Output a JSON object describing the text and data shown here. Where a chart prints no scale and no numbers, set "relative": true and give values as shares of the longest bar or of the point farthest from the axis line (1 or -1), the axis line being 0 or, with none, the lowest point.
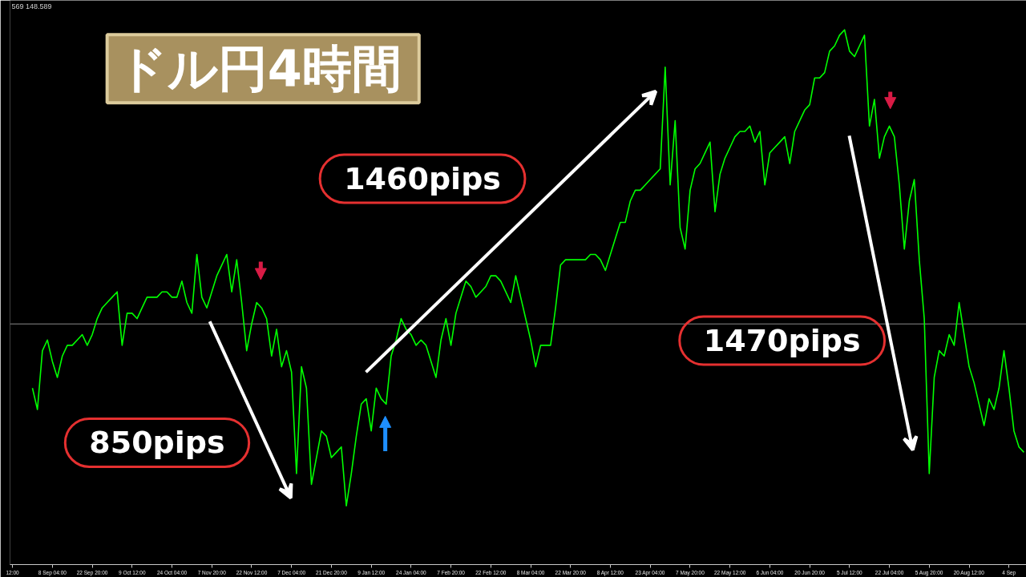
{
  "chart_data": {
    "type": "line",
    "title": "ドル円4時間",
    "relative": true,
    "color": "#00ff00",
    "tick_labels": "x",
    "annotations": [
      "569 148.589",
      "1460pips",
      "1470pips",
      "850pips"
    ],
    "ref_lines": [
      {
        "axis": "y",
        "value": 0.45,
        "color": "#8c8c8c"
      }
    ],
    "categories": [
      "12:00",
      null,
      null,
      null,
      null,
      null,
      null,
      null,
      "8 Sep 04:00",
      null,
      null,
      null,
      null,
      null,
      null,
      null,
      "22 Sep 20:00",
      null,
      null,
      null,
      null,
      null,
      null,
      null,
      "9 Oct 12:00",
      null,
      null,
      null,
      null,
      null,
      null,
      null,
      "24 Oct 04:00",
      null,
      null,
      null,
      null,
      null,
      null,
      null,
      "7 Nov 20:00",
      null,
      null,
      null,
      null,
      null,
      null,
      null,
      "22 Nov 12:00",
      null,
      null,
      null,
      null,
      null,
      null,
      null,
      "7 Dec 04:00",
      null,
      null,
      null,
      null,
      null,
      null,
      null,
      "21 Dec 20:00",
      null,
      null,
      null,
      null,
      null,
      null,
      null,
      "9 Jan 12:00",
      null,
      null,
      null,
      null,
      null,
      null,
      null,
      "24 Jan 04:00",
      null,
      null,
      null,
      null,
      null,
      null,
      null,
      "7 Feb 20:00",
      null,
      null,
      null,
      null,
      null,
      null,
      null,
      "22 Feb 12:00",
      null,
      null,
      null,
      null,
      null,
      null,
      null,
      "8 Mar 04:00",
      null,
      null,
      null,
      null,
      null,
      null,
      null,
      "22 Mar 20:00",
      null,
      null,
      null,
      null,
      null,
      null,
      null,
      "8 Apr 12:00",
      null,
      null,
      null,
      null,
      null,
      null,
      null,
      "23 Apr 04:00",
      null,
      null,
      null,
      null,
      null,
      null,
      null,
      "7 May 20:00",
      null,
      null,
      null,
      null,
      null,
      null,
      null,
      "22 May 12:00",
      null,
      null,
      null,
      null,
      null,
      null,
      null,
      "6 Jun 04:00",
      null,
      null,
      null,
      null,
      null,
      null,
      null,
      "20 Jun 20:00",
      null,
      null,
      null,
      null,
      null,
      null,
      null,
      "5 Jul 12:00",
      null,
      null,
      null,
      null,
      null,
      null,
      null,
      "22 Jul 04:00",
      null,
      null,
      null,
      null,
      null,
      null,
      null,
      "5 Aug 20:00",
      null,
      null,
      null,
      null,
      null,
      null,
      null,
      "20 Aug 12:00",
      null,
      null,
      null,
      null,
      null,
      null,
      null,
      "4 Sep",
      null,
      null,
      null
    ],
    "values": [
      null,
      null,
      null,
      null,
      0.33,
      0.29,
      0.4,
      0.42,
      0.38,
      0.35,
      0.39,
      0.41,
      0.41,
      0.42,
      0.43,
      0.41,
      0.43,
      0.46,
      0.48,
      0.49,
      0.5,
      0.51,
      0.41,
      0.47,
      0.47,
      0.46,
      0.48,
      0.5,
      0.5,
      0.5,
      0.51,
      0.51,
      0.5,
      0.5,
      0.53,
      0.49,
      0.47,
      0.58,
      0.5,
      0.48,
      0.51,
      0.54,
      0.56,
      0.58,
      0.51,
      0.57,
      0.49,
      0.4,
      0.45,
      0.49,
      0.48,
      0.46,
      0.39,
      0.44,
      0.37,
      0.4,
      0.36,
      0.17,
      0.37,
      0.33,
      0.15,
      0.2,
      0.25,
      0.24,
      0.2,
      0.21,
      0.22,
      0.11,
      0.17,
      0.24,
      0.3,
      0.31,
      0.25,
      0.33,
      0.31,
      0.3,
      0.39,
      0.42,
      0.46,
      0.44,
      0.43,
      0.41,
      0.42,
      0.41,
      0.38,
      0.35,
      0.42,
      0.46,
      0.41,
      0.47,
      0.5,
      0.53,
      0.52,
      0.5,
      0.51,
      0.52,
      0.54,
      0.54,
      0.53,
      0.51,
      0.49,
      0.54,
      0.5,
      0.46,
      0.42,
      0.37,
      0.41,
      0.41,
      0.41,
      0.48,
      0.56,
      0.57,
      0.57,
      0.57,
      0.57,
      0.57,
      0.58,
      0.58,
      0.57,
      0.55,
      0.58,
      0.61,
      0.64,
      0.64,
      0.68,
      0.7,
      0.7,
      0.71,
      0.72,
      0.73,
      0.74,
      0.93,
      0.71,
      0.83,
      0.63,
      0.59,
      0.7,
      0.74,
      0.75,
      0.77,
      0.79,
      0.66,
      0.73,
      0.76,
      0.78,
      0.8,
      0.81,
      0.81,
      0.82,
      0.79,
      0.81,
      0.71,
      0.77,
      0.78,
      0.79,
      0.8,
      0.75,
      0.81,
      0.83,
      0.85,
      0.86,
      0.91,
      0.91,
      0.92,
      0.96,
      0.97,
      0.99,
      1.0,
      0.96,
      0.95,
      0.97,
      0.99,
      0.82,
      0.87,
      0.76,
      0.8,
      0.82,
      0.8,
      0.71,
      0.59,
      0.68,
      0.72,
      0.57,
      0.46,
      0.17,
      0.35,
      0.4,
      0.39,
      0.43,
      0.41,
      0.49,
      0.43,
      0.37,
      0.34,
      0.3,
      0.26,
      0.31,
      0.29,
      0.33,
      0.4,
      0.33,
      0.25,
      0.22,
      0.21
    ]
  }
}
